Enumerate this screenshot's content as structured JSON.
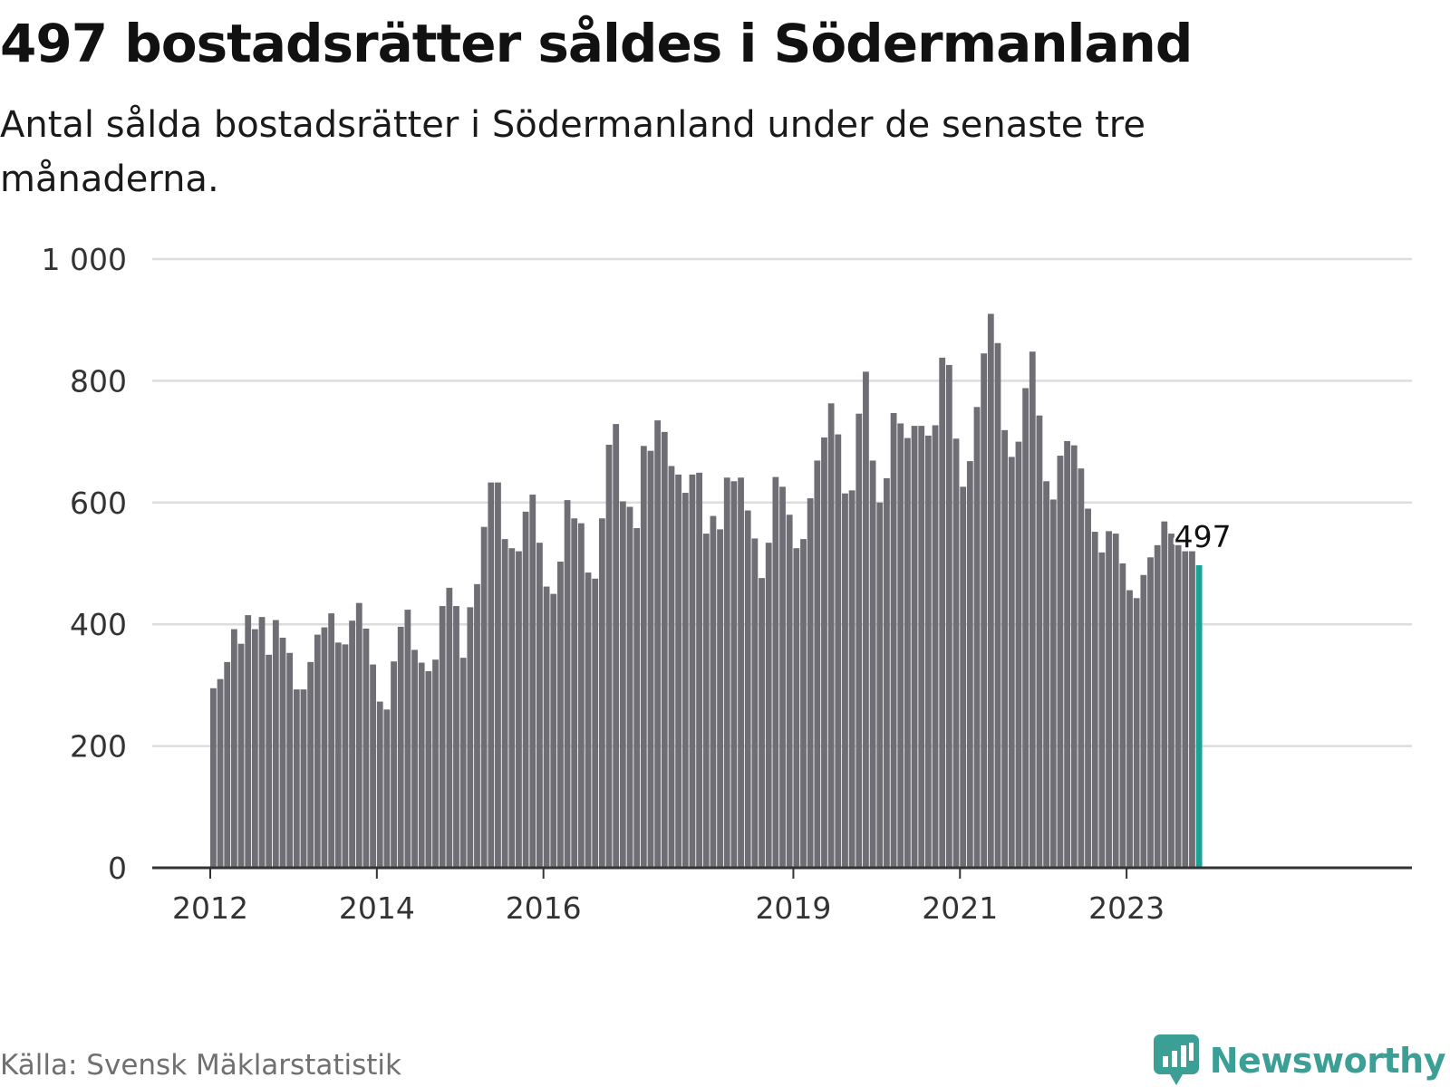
{
  "header": {
    "title": "497 bostadsrätter såldes i Södermanland",
    "subtitle": "Antal sålda bostadsrätter i Södermanland under de senaste tre månaderna."
  },
  "footer": {
    "source": "Källa: Svensk Mäklarstatistik",
    "brand": "Newsworthy",
    "brand_icon": "newsworthy-logo-icon"
  },
  "colors": {
    "bar": "#6f6e75",
    "highlight": "#1aa394",
    "grid": "#dddddd",
    "axis": "#333333",
    "brand": "#3b9f96"
  },
  "chart_data": {
    "type": "bar",
    "title": "497 bostadsrätter såldes i Södermanland",
    "ylim": [
      0,
      1000
    ],
    "y_ticks": [
      0,
      200,
      400,
      600,
      800,
      1000
    ],
    "y_tick_labels": [
      "0",
      "200",
      "400",
      "600",
      "800",
      "1 000"
    ],
    "x_tick_labels": [
      {
        "label": "2012",
        "index": 0
      },
      {
        "label": "2014",
        "index": 24
      },
      {
        "label": "2016",
        "index": 48
      },
      {
        "label": "2019",
        "index": 84
      },
      {
        "label": "2021",
        "index": 108
      },
      {
        "label": "2023",
        "index": 132
      }
    ],
    "x_start": "2012-01",
    "grid": true,
    "highlight_last": true,
    "last_value_label": "497",
    "values": [
      295,
      310,
      338,
      392,
      368,
      415,
      392,
      412,
      350,
      407,
      378,
      353,
      293,
      293,
      338,
      383,
      395,
      418,
      370,
      367,
      406,
      435,
      393,
      334,
      273,
      260,
      339,
      396,
      424,
      358,
      337,
      323,
      342,
      430,
      460,
      430,
      345,
      428,
      466,
      560,
      633,
      633,
      540,
      525,
      520,
      585,
      613,
      534,
      462,
      450,
      503,
      604,
      574,
      566,
      485,
      475,
      574,
      695,
      729,
      602,
      593,
      558,
      693,
      685,
      735,
      716,
      660,
      646,
      616,
      646,
      649,
      549,
      578,
      556,
      641,
      635,
      641,
      587,
      541,
      476,
      534,
      642,
      626,
      580,
      525,
      540,
      607,
      669,
      707,
      763,
      712,
      615,
      620,
      746,
      815,
      669,
      600,
      640,
      747,
      730,
      706,
      726,
      726,
      710,
      727,
      838,
      826,
      705,
      626,
      668,
      757,
      845,
      910,
      862,
      719,
      675,
      700,
      788,
      848,
      743,
      635,
      605,
      677,
      701,
      694,
      656,
      590,
      552,
      518,
      553,
      549,
      500,
      456,
      443,
      481,
      510,
      530,
      569,
      549,
      530,
      520,
      520,
      497
    ]
  }
}
